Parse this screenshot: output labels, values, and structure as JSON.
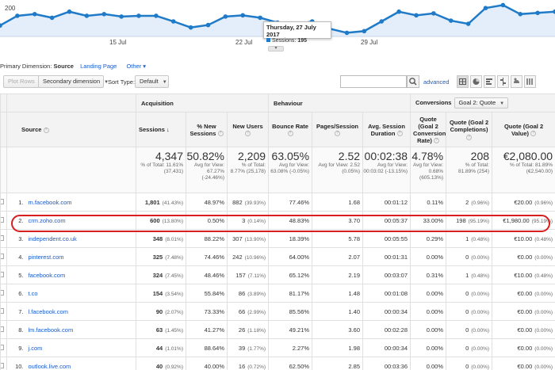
{
  "chart": {
    "y_label": "200",
    "x_labels": [
      "15 Jul",
      "22 Jul",
      "29 Jul"
    ],
    "series_points": [
      158,
      198,
      205,
      190,
      215,
      198,
      205,
      195,
      198,
      198,
      175,
      150,
      160,
      195,
      200,
      190,
      170,
      160,
      175,
      145,
      128,
      135,
      175,
      215,
      200,
      208,
      178,
      165,
      230,
      242,
      205,
      210,
      215
    ],
    "line_color": "#1f7ac8",
    "fill_color": "#e4eefa",
    "tooltip": {
      "date": "Thursday, 27 July 2017",
      "label": "Sessions:",
      "value": "195"
    },
    "expand": "▾"
  },
  "primary_dimension": {
    "label": "Primary Dimension:",
    "selected": "Source",
    "options": [
      "Landing Page",
      "Other ▾"
    ]
  },
  "toolbar": {
    "plot_rows": "Plot Rows",
    "secondary_dimension": "Secondary dimension",
    "sort_type_label": "Sort Type:",
    "sort_type_value": "Default",
    "search_placeholder": "",
    "advanced": "advanced"
  },
  "table": {
    "groups": {
      "acquisition": "Acquisition",
      "behaviour": "Behaviour",
      "conversions": "Conversions",
      "goal_select": "Goal 2: Quote"
    },
    "headers": {
      "source": "Source",
      "sessions": "Sessions",
      "new_sessions": "% New Sessions",
      "new_users": "New Users",
      "bounce_rate": "Bounce Rate",
      "pages_session": "Pages/Session",
      "avg_duration": "Avg. Session Duration",
      "conv_rate": "Quote (Goal 2 Conversion Rate)",
      "completions": "Quote (Goal 2 Completions)",
      "goal_value": "Quote (Goal 2 Value)"
    },
    "totals": {
      "sessions": {
        "big": "4,347",
        "sub": "% of Total: 11.61% (37,431)"
      },
      "new_sessions": {
        "big": "50.82%",
        "sub": "Avg for View: 67.27% (-24.46%)"
      },
      "new_users": {
        "big": "2,209",
        "sub": "% of Total: 8.77% (25,178)"
      },
      "bounce_rate": {
        "big": "63.05%",
        "sub": "Avg for View: 63.08% (-0.05%)"
      },
      "pages_session": {
        "big": "2.52",
        "sub": "Avg for View: 2.52 (0.05%)"
      },
      "avg_duration": {
        "big": "00:02:38",
        "sub": "Avg for View: 00:03:02 (-13.15%)"
      },
      "conv_rate": {
        "big": "4.78%",
        "sub": "Avg for View: 0.68% (605.13%)"
      },
      "completions": {
        "big": "208",
        "sub": "% of Total: 81.89% (254)"
      },
      "goal_value": {
        "big": "€2,080.00",
        "sub": "% of Total: 81.89% (€2,540.00)"
      }
    },
    "rows": [
      {
        "idx": "1.",
        "source": "m.facebook.com",
        "sessions": "1,801",
        "sessions_pct": "(41.43%)",
        "new_sessions": "48.97%",
        "new_users": "882",
        "new_users_pct": "(39.93%)",
        "bounce": "77.46%",
        "pages": "1.68",
        "duration": "00:01:12",
        "conv": "0.11%",
        "comp": "2",
        "comp_pct": "(0.96%)",
        "value": "€20.00",
        "value_pct": "(0.96%)"
      },
      {
        "idx": "2.",
        "source": "crm.zoho.com",
        "sessions": "600",
        "sessions_pct": "(13.80%)",
        "new_sessions": "0.50%",
        "new_users": "3",
        "new_users_pct": "(0.14%)",
        "bounce": "48.83%",
        "pages": "3.70",
        "duration": "00:05:37",
        "conv": "33.00%",
        "comp": "198",
        "comp_pct": "(95.19%)",
        "value": "€1,980.00",
        "value_pct": "(95.19%)"
      },
      {
        "idx": "3.",
        "source": "independent.co.uk",
        "sessions": "348",
        "sessions_pct": "(8.01%)",
        "new_sessions": "88.22%",
        "new_users": "307",
        "new_users_pct": "(13.90%)",
        "bounce": "18.39%",
        "pages": "5.78",
        "duration": "00:05:55",
        "conv": "0.29%",
        "comp": "1",
        "comp_pct": "(0.48%)",
        "value": "€10.00",
        "value_pct": "(0.48%)"
      },
      {
        "idx": "4.",
        "source": "pinterest.com",
        "sessions": "325",
        "sessions_pct": "(7.48%)",
        "new_sessions": "74.46%",
        "new_users": "242",
        "new_users_pct": "(10.96%)",
        "bounce": "64.00%",
        "pages": "2.07",
        "duration": "00:01:31",
        "conv": "0.00%",
        "comp": "0",
        "comp_pct": "(0.00%)",
        "value": "€0.00",
        "value_pct": "(0.00%)"
      },
      {
        "idx": "5.",
        "source": "facebook.com",
        "sessions": "324",
        "sessions_pct": "(7.45%)",
        "new_sessions": "48.46%",
        "new_users": "157",
        "new_users_pct": "(7.11%)",
        "bounce": "65.12%",
        "pages": "2.19",
        "duration": "00:03:07",
        "conv": "0.31%",
        "comp": "1",
        "comp_pct": "(0.48%)",
        "value": "€10.00",
        "value_pct": "(0.48%)"
      },
      {
        "idx": "6.",
        "source": "t.co",
        "sessions": "154",
        "sessions_pct": "(3.54%)",
        "new_sessions": "55.84%",
        "new_users": "86",
        "new_users_pct": "(3.89%)",
        "bounce": "81.17%",
        "pages": "1.48",
        "duration": "00:01:08",
        "conv": "0.00%",
        "comp": "0",
        "comp_pct": "(0.00%)",
        "value": "€0.00",
        "value_pct": "(0.00%)"
      },
      {
        "idx": "7.",
        "source": "l.facebook.com",
        "sessions": "90",
        "sessions_pct": "(2.07%)",
        "new_sessions": "73.33%",
        "new_users": "66",
        "new_users_pct": "(2.99%)",
        "bounce": "85.56%",
        "pages": "1.40",
        "duration": "00:00:34",
        "conv": "0.00%",
        "comp": "0",
        "comp_pct": "(0.00%)",
        "value": "€0.00",
        "value_pct": "(0.00%)"
      },
      {
        "idx": "8.",
        "source": "lm.facebook.com",
        "sessions": "63",
        "sessions_pct": "(1.45%)",
        "new_sessions": "41.27%",
        "new_users": "26",
        "new_users_pct": "(1.18%)",
        "bounce": "49.21%",
        "pages": "3.60",
        "duration": "00:02:28",
        "conv": "0.00%",
        "comp": "0",
        "comp_pct": "(0.00%)",
        "value": "€0.00",
        "value_pct": "(0.00%)"
      },
      {
        "idx": "9.",
        "source": "j.com",
        "sessions": "44",
        "sessions_pct": "(1.01%)",
        "new_sessions": "88.64%",
        "new_users": "39",
        "new_users_pct": "(1.77%)",
        "bounce": "2.27%",
        "pages": "1.98",
        "duration": "00:00:34",
        "conv": "0.00%",
        "comp": "0",
        "comp_pct": "(0.00%)",
        "value": "€0.00",
        "value_pct": "(0.00%)"
      },
      {
        "idx": "10.",
        "source": "outlook.live.com",
        "sessions": "40",
        "sessions_pct": "(0.92%)",
        "new_sessions": "40.00%",
        "new_users": "16",
        "new_users_pct": "(0.72%)",
        "bounce": "62.50%",
        "pages": "2.85",
        "duration": "00:03:36",
        "conv": "0.00%",
        "comp": "0",
        "comp_pct": "(0.00%)",
        "value": "€0.00",
        "value_pct": "(0.00%)"
      }
    ]
  }
}
